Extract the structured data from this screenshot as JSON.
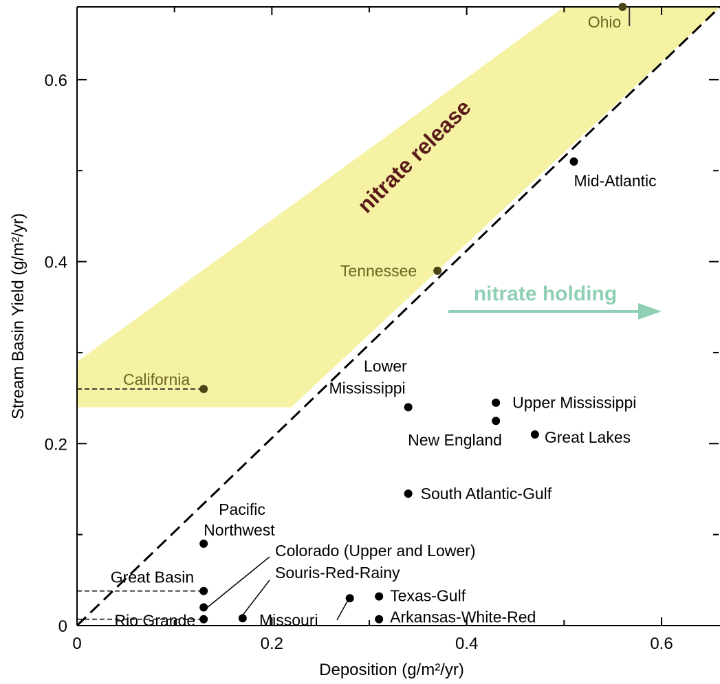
{
  "chart_data": {
    "type": "scatter",
    "xlabel": "Deposition (g/m²/yr)",
    "ylabel": "Stream Basin Yield (g/m²/yr)",
    "xlim": [
      0,
      0.66
    ],
    "ylim": [
      0,
      0.68
    ],
    "x_ticks": [
      0,
      0.2,
      0.4,
      0.6
    ],
    "x_tick_labels": [
      "0",
      "0.2",
      "0.4",
      "0.6"
    ],
    "y_ticks": [
      0,
      0.2,
      0.4,
      0.6
    ],
    "y_tick_labels": [
      "0",
      "0.2",
      "0.4",
      "0.6"
    ],
    "grid": false,
    "reference_line": {
      "style": "dashed",
      "from": [
        0,
        0
      ],
      "to": [
        0.66,
        0.68
      ],
      "meaning": "yield equals deposition"
    },
    "shaded_band": {
      "label": "nitrate release",
      "color": "#f5f2a4",
      "label_color": "#5b1a1a",
      "polygon": [
        [
          0,
          0.24
        ],
        [
          0.22,
          0.24
        ],
        [
          0.66,
          0.68
        ],
        [
          0.5,
          0.68
        ],
        [
          0,
          0.29
        ]
      ]
    },
    "annotation": {
      "label": "nitrate holding",
      "color": "#8fcfb3",
      "arrow": "right"
    },
    "points": [
      {
        "name": "Ohio",
        "x": 0.56,
        "y": 0.68,
        "highlight": true
      },
      {
        "name": "Mid-Atlantic",
        "x": 0.51,
        "y": 0.51,
        "highlight": false
      },
      {
        "name": "Tennessee",
        "x": 0.37,
        "y": 0.39,
        "highlight": true
      },
      {
        "name": "California",
        "x": 0.13,
        "y": 0.26,
        "highlight": true
      },
      {
        "name": "Lower Mississippi",
        "x": 0.34,
        "y": 0.24,
        "highlight": false
      },
      {
        "name": "Upper Mississippi",
        "x": 0.43,
        "y": 0.245,
        "highlight": false
      },
      {
        "name": "New England",
        "x": 0.43,
        "y": 0.225,
        "highlight": false
      },
      {
        "name": "Great Lakes",
        "x": 0.47,
        "y": 0.21,
        "highlight": false
      },
      {
        "name": "South Atlantic-Gulf",
        "x": 0.34,
        "y": 0.145,
        "highlight": false
      },
      {
        "name": "Pacific Northwest",
        "x": 0.13,
        "y": 0.09,
        "highlight": false
      },
      {
        "name": "Colorado (Upper and Lower)",
        "x": 0.13,
        "y": 0.02,
        "highlight": false
      },
      {
        "name": "Great Basin",
        "x": 0.13,
        "y": 0.038,
        "highlight": false
      },
      {
        "name": "Souris-Red-Rainy",
        "x": 0.17,
        "y": 0.008,
        "highlight": false
      },
      {
        "name": "Rio Grande",
        "x": 0.13,
        "y": 0.007,
        "highlight": false
      },
      {
        "name": "Missouri",
        "x": 0.28,
        "y": 0.03,
        "highlight": false
      },
      {
        "name": "Texas-Gulf",
        "x": 0.31,
        "y": 0.032,
        "highlight": false
      },
      {
        "name": "Arkansas-White-Red",
        "x": 0.31,
        "y": 0.007,
        "highlight": false
      }
    ],
    "label_lines": {
      "Colorado (Upper and Lower)": {
        "style": "leader"
      },
      "Souris-Red-Rainy": {
        "style": "leader"
      },
      "Missouri": {
        "style": "leader"
      },
      "Great Basin": {
        "style": "dashed-horizontal"
      },
      "Rio Grande": {
        "style": "dashed-horizontal"
      },
      "California": {
        "style": "dashed-horizontal"
      }
    }
  }
}
